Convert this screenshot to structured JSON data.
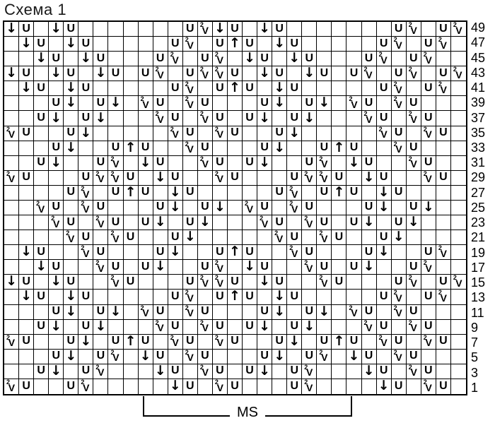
{
  "title": "Схема 1",
  "legend": {
    "ms_label": "MS"
  },
  "colors": {
    "line": "#000000",
    "background": "#ffffff",
    "text": "#000000"
  },
  "symbols": {
    "d": {
      "glyph": "↓",
      "name": "arrow-down-symbol"
    },
    "t": {
      "glyph": "↑",
      "name": "arrow-up-symbol"
    },
    "u": {
      "glyph": "U",
      "name": "u-yarnover-symbol"
    },
    "v": {
      "glyph": "V2",
      "name": "v2-symbol"
    }
  },
  "grid": {
    "columns": 31,
    "cell_codes": ". = empty, d = down-arrow, t = up-arrow, u = U, v = V-with-2",
    "rows": [
      {
        "n": "49",
        "c": "du.du.......uvdu.du.......uv.uv"
      },
      {
        "n": "47",
        "c": ".du.du.....uv.utu.du.....uv.uv."
      },
      {
        "n": "45",
        "c": "..du.du...uv.uv.du.du...uv.uv.."
      },
      {
        "n": "43",
        "c": "du.du.du.uv.uvvu.du.du.uv.uv.uv"
      },
      {
        "n": "41",
        "c": ".du.du.....uv.utu.du.....uv.uv."
      },
      {
        "n": "39",
        "c": "...ud.ud.vu.vu...ud.ud.vu.vu..."
      },
      {
        "n": "37",
        "c": "..ud.ud...vu.vu.ud.ud...vu.vu.."
      },
      {
        "n": "35",
        "c": "vu..ud.....vu.vu..ud.....vu.vu."
      },
      {
        "n": "33",
        "c": "...ud..utu..vu...ud..utu..vu..."
      },
      {
        "n": "31",
        "c": "..ud..uv.du..vu.ud..uv.du..vu.."
      },
      {
        "n": "29",
        "c": "vu...uvvu.du..vu...uvvu.du..vu."
      },
      {
        "n": "27",
        "c": "....uv.utu.du.....uv.utu.du...."
      },
      {
        "n": "25",
        "c": "..vu.vu...ud.ud.vu.vu...ud.ud.."
      },
      {
        "n": "23",
        "c": "...vu.vu.ud.ud...vu.vu.ud.ud..."
      },
      {
        "n": "21",
        "c": "....vu.vu..ud.....vu.vu..ud...."
      },
      {
        "n": "19",
        "c": ".du..vu...ud..utu..vu...ud..uv."
      },
      {
        "n": "17",
        "c": "..du..vu.ud..uv.du..vu.ud..uv.."
      },
      {
        "n": "15",
        "c": "du.du..vu...uvvu.du..vu...uv.uv"
      },
      {
        "n": "13",
        "c": ".du.du.....uv.utu.du.....uv.uv."
      },
      {
        "n": "11",
        "c": "...ud.ud.vu.vu...ud.ud.vu.vu..."
      },
      {
        "n": "9",
        "c": "..ud.ud...vu.vu.ud.ud...vu.vu.."
      },
      {
        "n": "7",
        "c": "vu..ud.utu.vu.vu..ud.utu.vu.vu."
      },
      {
        "n": "5",
        "c": "...ud.uv.du.vu...ud.uv.du.vu..."
      },
      {
        "n": "3",
        "c": "..ud.uv...du.vu.ud.uv...du.vu.."
      },
      {
        "n": "1",
        "c": "vu..uv.....du.vu...uv....du.vu."
      }
    ]
  }
}
